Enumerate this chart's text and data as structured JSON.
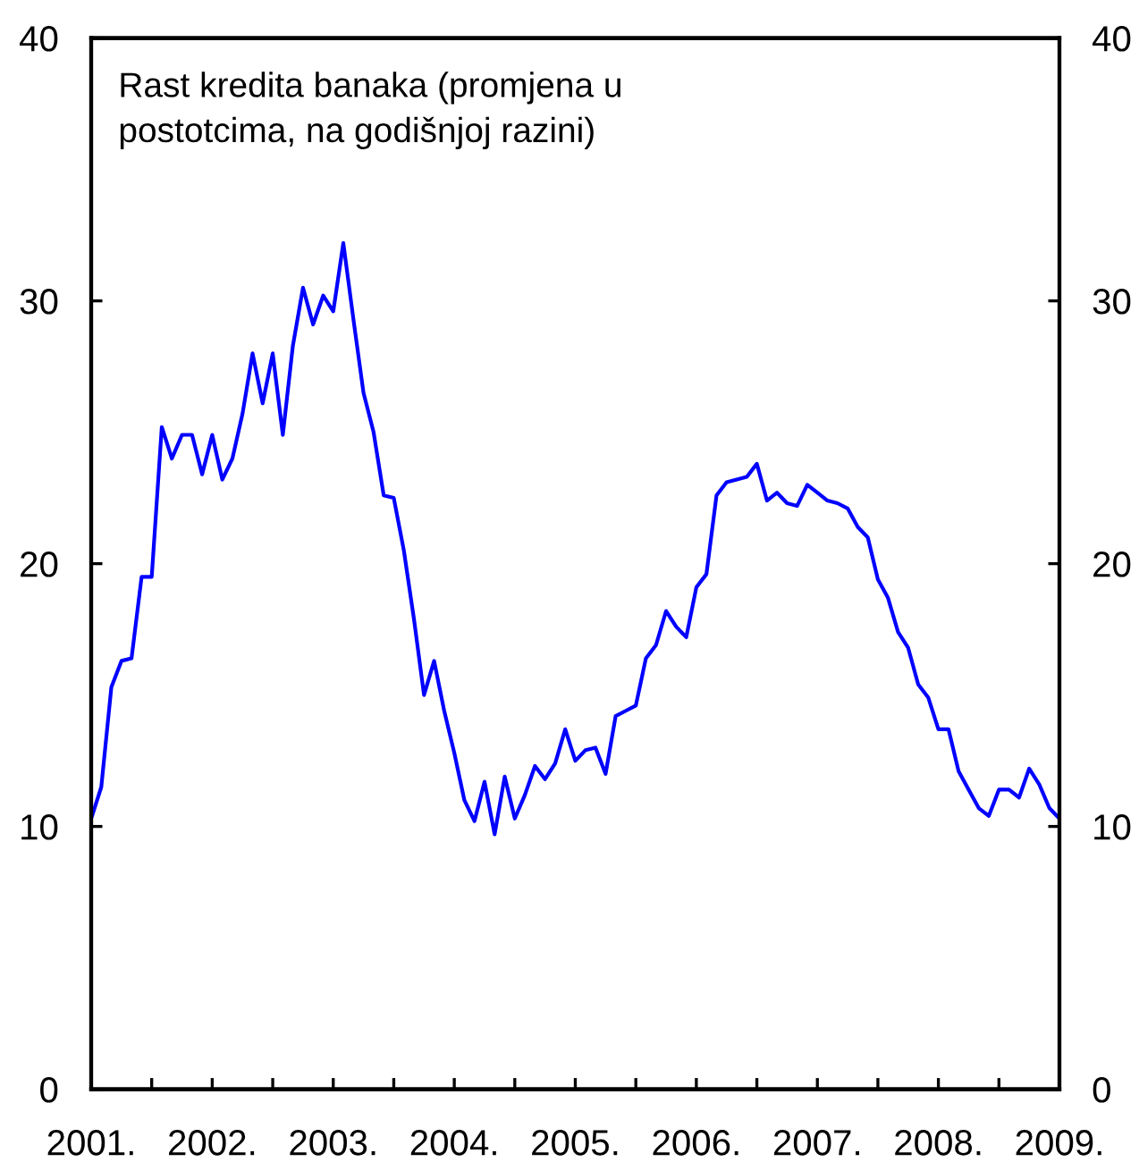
{
  "chart_data": {
    "type": "line",
    "title": "Rast kredita banaka (promjena u\npostotcima, na godišnjoj razini)",
    "x": [
      "2001-01",
      "2001-02",
      "2001-03",
      "2001-04",
      "2001-05",
      "2001-06",
      "2001-07",
      "2001-08",
      "2001-09",
      "2001-10",
      "2001-11",
      "2001-12",
      "2002-01",
      "2002-02",
      "2002-03",
      "2002-04",
      "2002-05",
      "2002-06",
      "2002-07",
      "2002-08",
      "2002-09",
      "2002-10",
      "2002-11",
      "2002-12",
      "2003-01",
      "2003-02",
      "2003-03",
      "2003-04",
      "2003-05",
      "2003-06",
      "2003-07",
      "2003-08",
      "2003-09",
      "2003-10",
      "2003-11",
      "2003-12",
      "2004-01",
      "2004-02",
      "2004-03",
      "2004-04",
      "2004-05",
      "2004-06",
      "2004-07",
      "2004-08",
      "2004-09",
      "2004-10",
      "2004-11",
      "2004-12",
      "2005-01",
      "2005-02",
      "2005-03",
      "2005-04",
      "2005-05",
      "2005-06",
      "2005-07",
      "2005-08",
      "2005-09",
      "2005-10",
      "2005-11",
      "2005-12",
      "2006-01",
      "2006-02",
      "2006-03",
      "2006-04",
      "2006-05",
      "2006-06",
      "2006-07",
      "2006-08",
      "2006-09",
      "2006-10",
      "2006-11",
      "2006-12",
      "2007-01",
      "2007-02",
      "2007-03",
      "2007-04",
      "2007-05",
      "2007-06",
      "2007-07",
      "2007-08",
      "2007-09",
      "2007-10",
      "2007-11",
      "2007-12",
      "2008-01",
      "2008-02",
      "2008-03",
      "2008-04",
      "2008-05",
      "2008-06",
      "2008-07",
      "2008-08",
      "2008-09",
      "2008-10",
      "2008-11",
      "2008-12",
      "2009-01"
    ],
    "series": [
      {
        "color": "#0000ff",
        "values": [
          10.3,
          11.5,
          15.3,
          16.3,
          16.4,
          19.5,
          19.5,
          25.2,
          24.0,
          24.9,
          24.9,
          23.4,
          24.9,
          23.2,
          24.0,
          25.7,
          28.0,
          26.1,
          28.0,
          24.9,
          28.3,
          30.5,
          29.1,
          30.2,
          29.6,
          32.2,
          29.3,
          26.5,
          25.0,
          22.6,
          22.5,
          20.5,
          17.9,
          15.0,
          16.3,
          14.4,
          12.8,
          11.0,
          10.2,
          11.7,
          9.7,
          11.9,
          10.3,
          11.2,
          12.3,
          11.8,
          12.4,
          13.7,
          12.5,
          12.9,
          13.0,
          12.0,
          14.2,
          14.4,
          14.6,
          16.4,
          16.9,
          18.2,
          17.6,
          17.2,
          19.1,
          19.6,
          22.6,
          23.1,
          23.2,
          23.3,
          23.8,
          22.4,
          22.7,
          22.3,
          22.2,
          23.0,
          22.7,
          22.4,
          22.3,
          22.1,
          21.4,
          21.0,
          19.4,
          18.7,
          17.4,
          16.8,
          15.4,
          14.9,
          13.7,
          13.7,
          12.1,
          11.4,
          10.7,
          10.4,
          11.4,
          11.4,
          11.1,
          12.2,
          11.6,
          10.7,
          10.3
        ]
      }
    ],
    "xlim": [
      "2001-01",
      "2009-01"
    ],
    "xticks": [
      {
        "value": "2001-01",
        "label": "2001."
      },
      {
        "value": "2001-07",
        "label": null
      },
      {
        "value": "2002-01",
        "label": "2002."
      },
      {
        "value": "2002-07",
        "label": null
      },
      {
        "value": "2003-01",
        "label": "2003."
      },
      {
        "value": "2003-07",
        "label": null
      },
      {
        "value": "2004-01",
        "label": "2004."
      },
      {
        "value": "2004-07",
        "label": null
      },
      {
        "value": "2005-01",
        "label": "2005."
      },
      {
        "value": "2005-07",
        "label": null
      },
      {
        "value": "2006-01",
        "label": "2006."
      },
      {
        "value": "2006-07",
        "label": null
      },
      {
        "value": "2007-01",
        "label": "2007."
      },
      {
        "value": "2007-07",
        "label": null
      },
      {
        "value": "2008-01",
        "label": "2008."
      },
      {
        "value": "2008-07",
        "label": null
      },
      {
        "value": "2009-01",
        "label": "2009."
      }
    ],
    "ylim": [
      0,
      40
    ],
    "yticks": [
      0,
      10,
      20,
      30,
      40
    ],
    "y2lim": [
      0,
      40
    ],
    "y2ticks": [
      0,
      10,
      20,
      30,
      40
    ]
  }
}
